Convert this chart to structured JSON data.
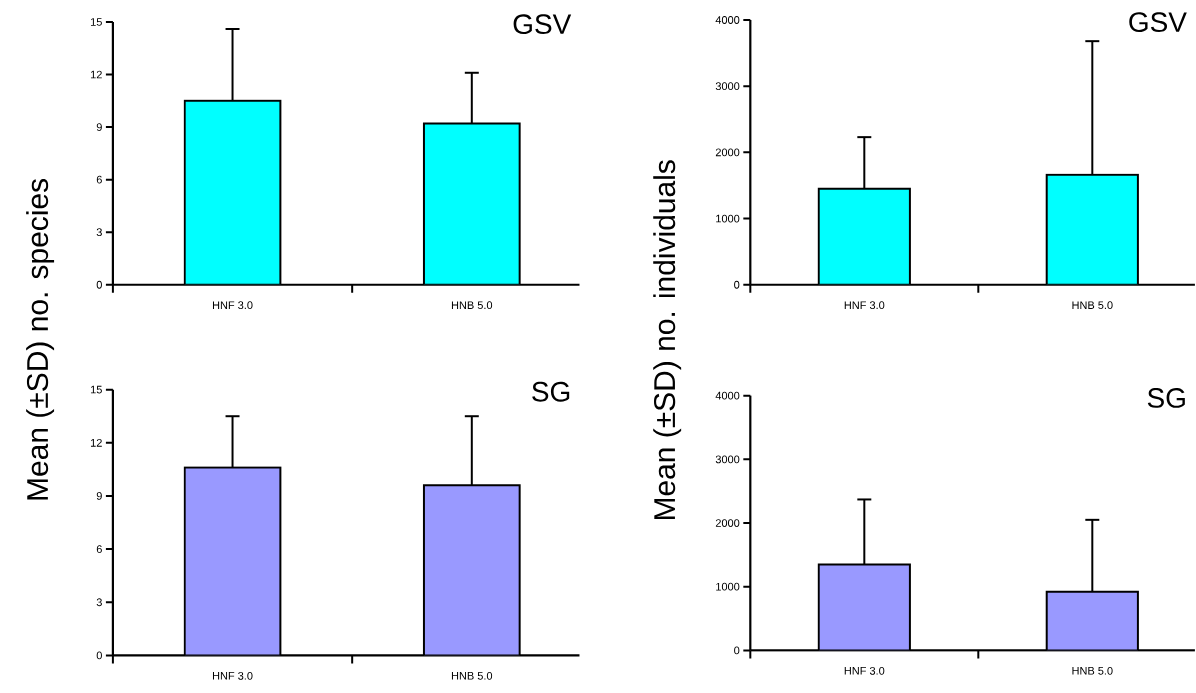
{
  "chart_data": [
    {
      "type": "bar",
      "title": "GSV",
      "ylabel": "Mean (±SD) no. species",
      "categories": [
        "HNF 3.0",
        "HNB 5.0"
      ],
      "values": [
        10.5,
        9.2
      ],
      "errors": [
        [
          10.5,
          14.6
        ],
        [
          9.2,
          12.1
        ]
      ],
      "color": "#00ffff",
      "ylim": [
        0,
        15
      ],
      "yticks": [
        0,
        3,
        6,
        9,
        12,
        15
      ]
    },
    {
      "type": "bar",
      "title": "GSV",
      "ylabel": "Mean (±SD) no. individuals",
      "categories": [
        "HNF 3.0",
        "HNB 5.0"
      ],
      "values": [
        1450,
        1660
      ],
      "errors": [
        [
          1450,
          2230
        ],
        [
          1660,
          3680
        ]
      ],
      "color": "#00ffff",
      "ylim": [
        0,
        4000
      ],
      "yticks": [
        0,
        1000,
        2000,
        3000,
        4000
      ]
    },
    {
      "type": "bar",
      "title": "SG",
      "categories": [
        "HNF 3.0",
        "HNB 5.0"
      ],
      "values": [
        10.6,
        9.6
      ],
      "errors": [
        [
          10.6,
          13.5
        ],
        [
          9.6,
          13.5
        ]
      ],
      "color": "#9999ff",
      "ylim": [
        0,
        15
      ],
      "yticks": [
        0,
        3,
        6,
        9,
        12,
        15
      ]
    },
    {
      "type": "bar",
      "title": "SG",
      "categories": [
        "HNF 3.0",
        "HNB 5.0"
      ],
      "values": [
        1350,
        920
      ],
      "errors": [
        [
          1350,
          2370
        ],
        [
          920,
          2050
        ]
      ],
      "color": "#9999ff",
      "ylim": [
        0,
        4000
      ],
      "yticks": [
        0,
        1000,
        2000,
        3000,
        4000
      ]
    }
  ]
}
